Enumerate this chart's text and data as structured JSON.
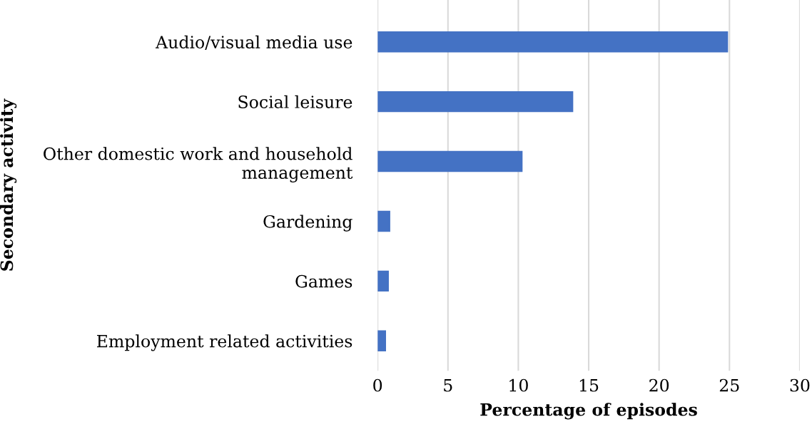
{
  "chart_data": {
    "type": "bar",
    "orientation": "horizontal",
    "categories": [
      "Audio/visual media use",
      "Social leisure",
      "Other domestic work and household\nmanagement",
      "Gardening",
      "Games",
      "Employment related activities"
    ],
    "values": [
      24.9,
      13.9,
      10.3,
      0.9,
      0.8,
      0.6
    ],
    "color": "#4472c4",
    "xlim": [
      0,
      30
    ],
    "xticks": [
      0,
      5,
      10,
      15,
      20,
      25,
      30
    ],
    "grid": "x",
    "xlabel": "Percentage of episodes",
    "ylabel": "Secondary activity"
  }
}
